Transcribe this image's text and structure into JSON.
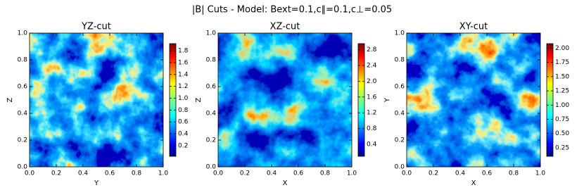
{
  "title": "|B| Cuts - Model: Bext=0.1,c∥=0.1,c⊥=0.05",
  "chart_data": [
    {
      "type": "heatmap",
      "title": "YZ-cut",
      "xlabel": "Y",
      "ylabel": "Z",
      "xlim": [
        0,
        1
      ],
      "ylim": [
        0,
        1
      ],
      "xticks": [
        {
          "value": 0,
          "label": "0.0"
        },
        0.2,
        0.4,
        0.6,
        0.8,
        {
          "value": 1,
          "label": "1.0"
        }
      ],
      "yticks": [
        {
          "value": 0,
          "label": "0.0"
        },
        0.2,
        0.4,
        0.6,
        0.8,
        {
          "value": 1,
          "label": "1.0"
        }
      ],
      "colormap": "jet",
      "clim": [
        0.02,
        1.92
      ],
      "cticks": [
        0.2,
        0.4,
        0.6,
        0.8,
        {
          "value": 1,
          "label": "1.0"
        },
        1.2,
        1.4,
        1.6,
        1.8
      ]
    },
    {
      "type": "heatmap",
      "title": "XZ-cut",
      "xlabel": "X",
      "ylabel": "Z",
      "xlim": [
        0,
        1
      ],
      "ylim": [
        0,
        1
      ],
      "xticks": [
        {
          "value": 0,
          "label": "0.0"
        },
        0.2,
        0.4,
        0.6,
        0.8,
        {
          "value": 1,
          "label": "1.0"
        }
      ],
      "yticks": [
        {
          "value": 0,
          "label": "0.0"
        },
        0.2,
        0.4,
        0.6,
        0.8,
        {
          "value": 1,
          "label": "1.0"
        }
      ],
      "colormap": "jet",
      "clim": [
        0.1,
        2.95
      ],
      "cticks": [
        0.4,
        0.8,
        1.2,
        1.6,
        {
          "value": 2,
          "label": "2.0"
        },
        2.4,
        2.8
      ]
    },
    {
      "type": "heatmap",
      "title": "XY-cut",
      "xlabel": "X",
      "ylabel": "Y",
      "xlim": [
        0,
        1
      ],
      "ylim": [
        0,
        1
      ],
      "xticks": [
        {
          "value": 0,
          "label": "0.0"
        },
        0.2,
        0.4,
        0.6,
        0.8,
        {
          "value": 1,
          "label": "1.0"
        }
      ],
      "yticks": [
        {
          "value": 0,
          "label": "0.0"
        },
        0.2,
        0.4,
        0.6,
        0.8,
        {
          "value": 1,
          "label": "1.0"
        }
      ],
      "colormap": "jet",
      "clim": [
        0.1,
        2.08
      ],
      "cticks": [
        0.25,
        {
          "value": 0.5,
          "label": "0.50"
        },
        0.75,
        {
          "value": 1,
          "label": "1.00"
        },
        1.25,
        {
          "value": 1.5,
          "label": "1.50"
        },
        1.75,
        {
          "value": 2,
          "label": "2.00"
        }
      ]
    }
  ]
}
